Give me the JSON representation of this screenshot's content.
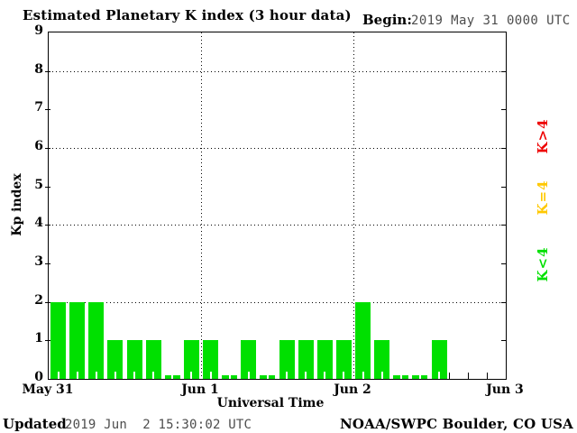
{
  "header": {
    "title": "Estimated Planetary K index (3 hour data)",
    "begin_label": "Begin:",
    "begin_value": "2019 May 31 0000 UTC"
  },
  "footer": {
    "updated_label": "Updated",
    "updated_value": "2019 Jun  2 15:30:02 UTC",
    "credit": "NOAA/SWPC Boulder, CO USA"
  },
  "chart_data": {
    "type": "bar",
    "title": "Estimated Planetary K index (3 hour data)",
    "xlabel": "Universal Time",
    "ylabel": "Kp index",
    "ylim": [
      0,
      9
    ],
    "yticks": [
      0,
      1,
      2,
      3,
      4,
      5,
      6,
      7,
      8,
      9
    ],
    "grid_y": [
      2,
      4,
      6,
      8
    ],
    "grid": "dotted",
    "bin_hours": 3,
    "slots_total": 24,
    "start_utc": "2019 May 31 0000 UTC",
    "x_day_labels": [
      "May 31",
      "Jun 1",
      "Jun 2",
      "Jun 3"
    ],
    "day_boundaries_dotted": [
      1,
      2
    ],
    "values": [
      2,
      2,
      2,
      1,
      1,
      1,
      0,
      1,
      1,
      0,
      1,
      0,
      1,
      1,
      1,
      1,
      2,
      1,
      0,
      0,
      1
    ],
    "bar_color": "#00e000",
    "legend_position": "right",
    "legend": [
      {
        "label": "K>4",
        "color": "#ee0000"
      },
      {
        "label": "K=4",
        "color": "#ffc800"
      },
      {
        "label": "K<4",
        "color": "#00e000"
      }
    ]
  }
}
